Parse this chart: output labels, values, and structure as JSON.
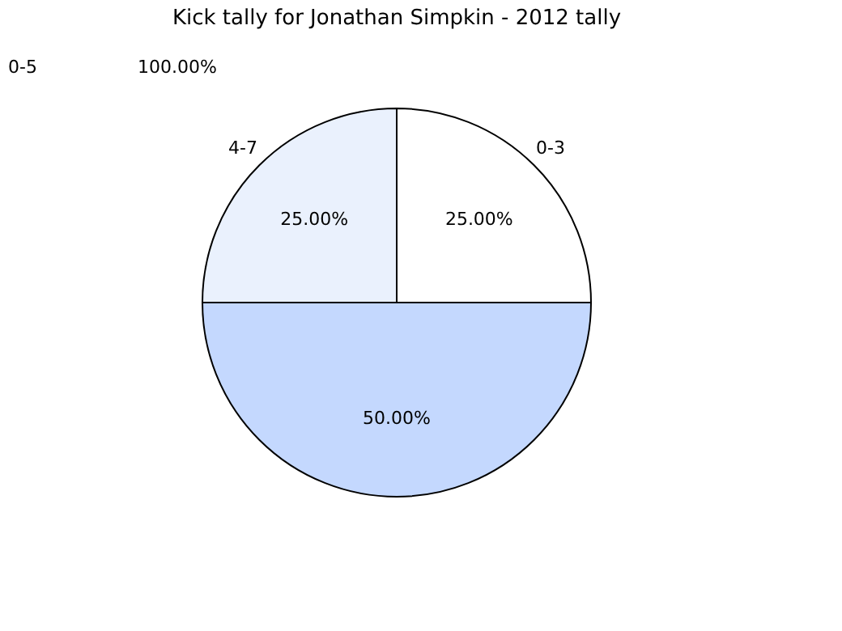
{
  "chart_data": {
    "type": "pie",
    "title": "Kick tally for Jonathan Simpkin - 2012 tally",
    "categories": [
      "0-3",
      "4-7",
      null
    ],
    "values": [
      25,
      25,
      50
    ],
    "colors": [
      "#ffffff",
      "#eaf1fd",
      "#c4d8fe"
    ],
    "value_labels": [
      "25.00%",
      "25.00%",
      "50.00%"
    ],
    "annotations": [
      "0-5",
      "100.00%"
    ],
    "legend": false
  }
}
